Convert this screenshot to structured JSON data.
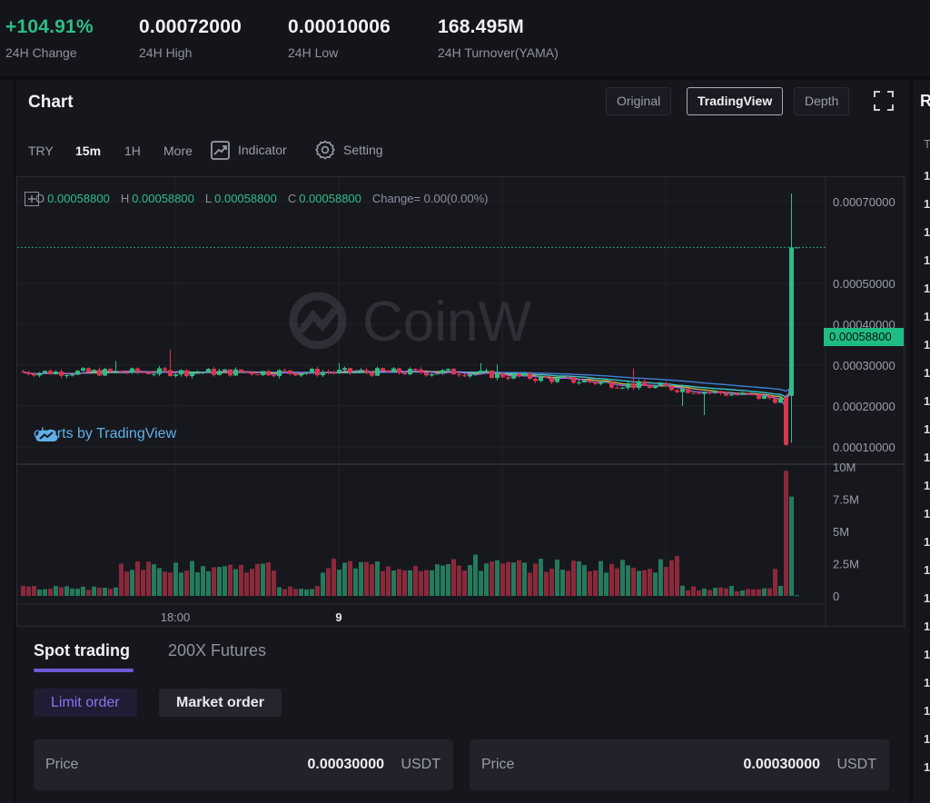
{
  "stats": [
    {
      "value": "+104.91%",
      "label": "24H Change"
    },
    {
      "value": "0.00072000",
      "label": "24H High"
    },
    {
      "value": "0.00010006",
      "label": "24H Low"
    },
    {
      "value": "168.495M",
      "label": "24H Turnover(YAMA)"
    }
  ],
  "right_panel": {
    "title": "R",
    "column_initial": "T",
    "row_initial": "1"
  },
  "chart": {
    "title": "Chart",
    "views": [
      "Original",
      "TradingView",
      "Depth"
    ],
    "active_view": "TradingView",
    "timeframes": [
      "TRY",
      "15m",
      "1H",
      "More"
    ],
    "active_timeframe": "15m",
    "indicator_label": "Indicator",
    "setting_label": "Setting",
    "ohlc": {
      "o_key": "O",
      "o": "0.00058800",
      "h_key": "H",
      "h": "0.00058800",
      "l_key": "L",
      "l": "0.00058800",
      "c_key": "C",
      "c": "0.00058800",
      "change": "Change= 0.00(0.00%)"
    },
    "watermark": "CoinW",
    "tv_credit": "charts by TradingView",
    "current_price": "0.00058800",
    "colors": {
      "up": "#2ebd85",
      "down": "#d9364f",
      "ma_blue": "#3f7fd6",
      "ma_yellow": "#c7b94a",
      "ma_purple": "#a35cd6",
      "ma_teal": "#3fc2c9"
    }
  },
  "chart_data": {
    "type": "candlestick",
    "price_axis_labels": [
      "0.00070000",
      "0.00050000",
      "0.00040000",
      "0.00030000",
      "0.00020000",
      "0.00010000"
    ],
    "price_axis_values": [
      0.0007,
      0.0005,
      0.0004,
      0.0003,
      0.0002,
      0.0001
    ],
    "volume_axis_labels": [
      "10M",
      "7.5M",
      "5M",
      "2.5M",
      "0"
    ],
    "volume_axis_values": [
      10000000,
      7500000,
      5000000,
      2500000,
      0
    ],
    "time_labels": [
      "18:00",
      "9"
    ],
    "last_price": 0.000588,
    "high_24h": 0.00072,
    "low_24h": 0.00010006
  },
  "trade": {
    "tabs": [
      "Spot trading",
      "200X Futures"
    ],
    "active_tab": "Spot trading",
    "order_types": [
      "Limit order",
      "Market order"
    ],
    "active_order_type": "Limit order",
    "fields": [
      {
        "label": "Price",
        "value": "0.00030000",
        "unit": "USDT"
      },
      {
        "label": "Price",
        "value": "0.00030000",
        "unit": "USDT"
      }
    ]
  }
}
